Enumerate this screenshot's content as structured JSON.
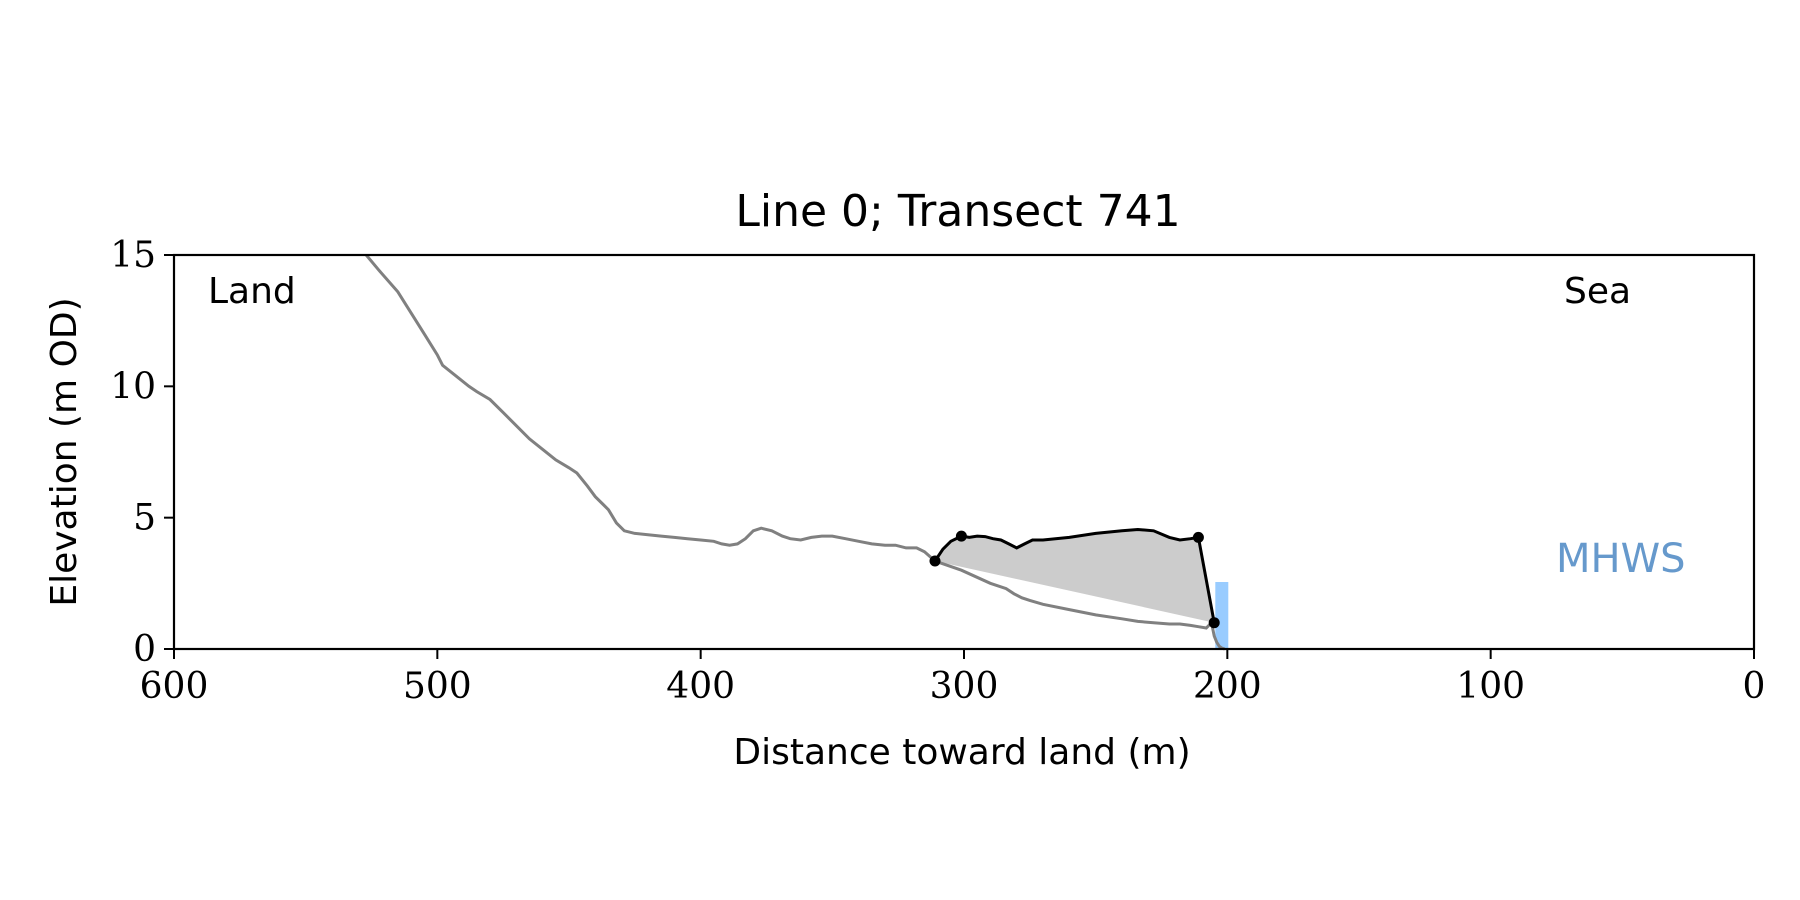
{
  "chart_data": {
    "type": "line",
    "title": "Line 0; Transect 741",
    "xlabel": "Distance toward land (m)",
    "ylabel": "Elevation (m OD)",
    "xlim": [
      600,
      0
    ],
    "ylim": [
      0,
      15
    ],
    "xticks": [
      600,
      500,
      400,
      300,
      200,
      100,
      0
    ],
    "yticks": [
      0,
      5,
      10,
      15
    ],
    "grid": false,
    "annotations": {
      "land": "Land",
      "sea": "Sea",
      "mhws": "MHWS"
    },
    "colors": {
      "profile": "#808080",
      "dune": "#000000",
      "fill": "#cccccc",
      "mhws_text": "#6699cc",
      "mhws_bar": "#99ccff"
    },
    "mhws": {
      "x": 200,
      "y_range": [
        0,
        2.55
      ]
    },
    "profile": {
      "x": [
        527,
        522,
        515,
        510,
        505,
        500,
        498,
        493,
        488,
        485,
        480,
        475,
        470,
        465,
        460,
        455,
        450,
        447,
        443,
        440,
        437,
        435,
        432,
        429,
        425,
        420,
        415,
        410,
        405,
        400,
        395,
        392,
        389,
        386,
        383,
        380,
        377,
        373,
        369,
        366,
        362,
        358,
        354,
        350,
        345,
        340,
        335,
        330,
        326,
        322,
        318,
        315,
        311,
        301,
        290,
        284,
        281,
        278,
        275,
        270,
        260,
        250,
        240,
        234,
        228,
        222,
        218,
        214,
        211,
        208,
        206,
        205,
        204,
        203,
        202,
        201
      ],
      "y": [
        15.0,
        14.4,
        13.6,
        12.8,
        12.0,
        11.2,
        10.8,
        10.4,
        10.0,
        9.8,
        9.5,
        9.0,
        8.5,
        8.0,
        7.6,
        7.2,
        6.9,
        6.7,
        6.2,
        5.8,
        5.5,
        5.3,
        4.8,
        4.5,
        4.4,
        4.35,
        4.3,
        4.25,
        4.2,
        4.15,
        4.1,
        4.0,
        3.95,
        4.0,
        4.2,
        4.5,
        4.6,
        4.5,
        4.3,
        4.2,
        4.15,
        4.25,
        4.3,
        4.3,
        4.2,
        4.1,
        4.0,
        3.95,
        3.95,
        3.85,
        3.85,
        3.7,
        3.35,
        3.0,
        2.5,
        2.3,
        2.1,
        1.95,
        1.85,
        1.7,
        1.5,
        1.3,
        1.15,
        1.05,
        1.0,
        0.95,
        0.95,
        0.9,
        0.85,
        0.8,
        1.0,
        0.5,
        0.25,
        0.1,
        0.03,
        0.0
      ]
    },
    "dune": {
      "x": [
        311,
        308,
        305,
        301,
        298,
        295,
        292,
        289,
        286,
        283,
        280,
        277,
        274,
        270,
        260,
        250,
        240,
        234,
        228,
        222,
        218,
        214,
        211,
        205
      ],
      "y": [
        3.35,
        3.8,
        4.1,
        4.3,
        4.25,
        4.3,
        4.28,
        4.2,
        4.15,
        4.0,
        3.85,
        4.0,
        4.15,
        4.15,
        4.25,
        4.4,
        4.5,
        4.55,
        4.5,
        4.25,
        4.15,
        4.2,
        4.25,
        1.0
      ]
    },
    "dune_markers": {
      "x": [
        311,
        301,
        211,
        205
      ],
      "y": [
        3.35,
        4.3,
        4.25,
        1.0
      ]
    }
  }
}
